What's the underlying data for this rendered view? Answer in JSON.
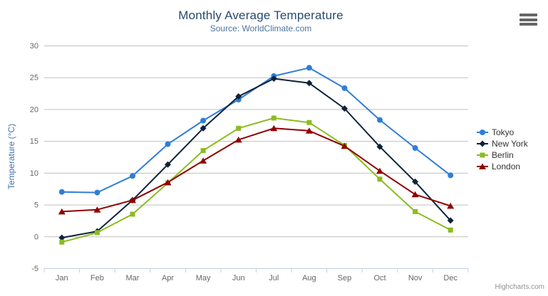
{
  "credits": "Highcharts.com",
  "export_menu": {
    "icon": "hamburger-menu-icon"
  },
  "colors": {
    "title": "#274b6d",
    "subtitle": "#4d759e",
    "y_axis_title": "#4572a7",
    "axis_label": "#666666",
    "grid": "#c0c0c0",
    "axis_line": "#c0d0e0",
    "legend_text": "#333333",
    "credits": "#909090",
    "menu_icon": "#666666"
  },
  "chart_data": {
    "type": "line",
    "title": "Monthly Average Temperature",
    "subtitle": "Source: WorldClimate.com",
    "xlabel": "",
    "ylabel": "Temperature (°C)",
    "ylim": [
      -5,
      30
    ],
    "y_ticks": [
      -5,
      0,
      5,
      10,
      15,
      20,
      25,
      30
    ],
    "grid": true,
    "legend_position": "right",
    "categories": [
      "Jan",
      "Feb",
      "Mar",
      "Apr",
      "May",
      "Jun",
      "Jul",
      "Aug",
      "Sep",
      "Oct",
      "Nov",
      "Dec"
    ],
    "series": [
      {
        "name": "Tokyo",
        "color": "#2f7ed8",
        "marker": "circle",
        "values": [
          7.0,
          6.9,
          9.5,
          14.5,
          18.2,
          21.5,
          25.2,
          26.5,
          23.3,
          18.3,
          13.9,
          9.6
        ]
      },
      {
        "name": "New York",
        "color": "#0d233a",
        "marker": "diamond",
        "values": [
          -0.2,
          0.8,
          5.7,
          11.3,
          17.0,
          22.0,
          24.8,
          24.1,
          20.1,
          14.1,
          8.6,
          2.5
        ]
      },
      {
        "name": "Berlin",
        "color": "#8bbc21",
        "marker": "square",
        "values": [
          -0.9,
          0.6,
          3.5,
          8.4,
          13.5,
          17.0,
          18.6,
          17.9,
          14.3,
          9.0,
          3.9,
          1.0
        ]
      },
      {
        "name": "London",
        "color": "#910000",
        "marker": "triangle",
        "values": [
          3.9,
          4.2,
          5.7,
          8.5,
          11.9,
          15.2,
          17.0,
          16.6,
          14.2,
          10.3,
          6.6,
          4.8
        ]
      }
    ]
  }
}
